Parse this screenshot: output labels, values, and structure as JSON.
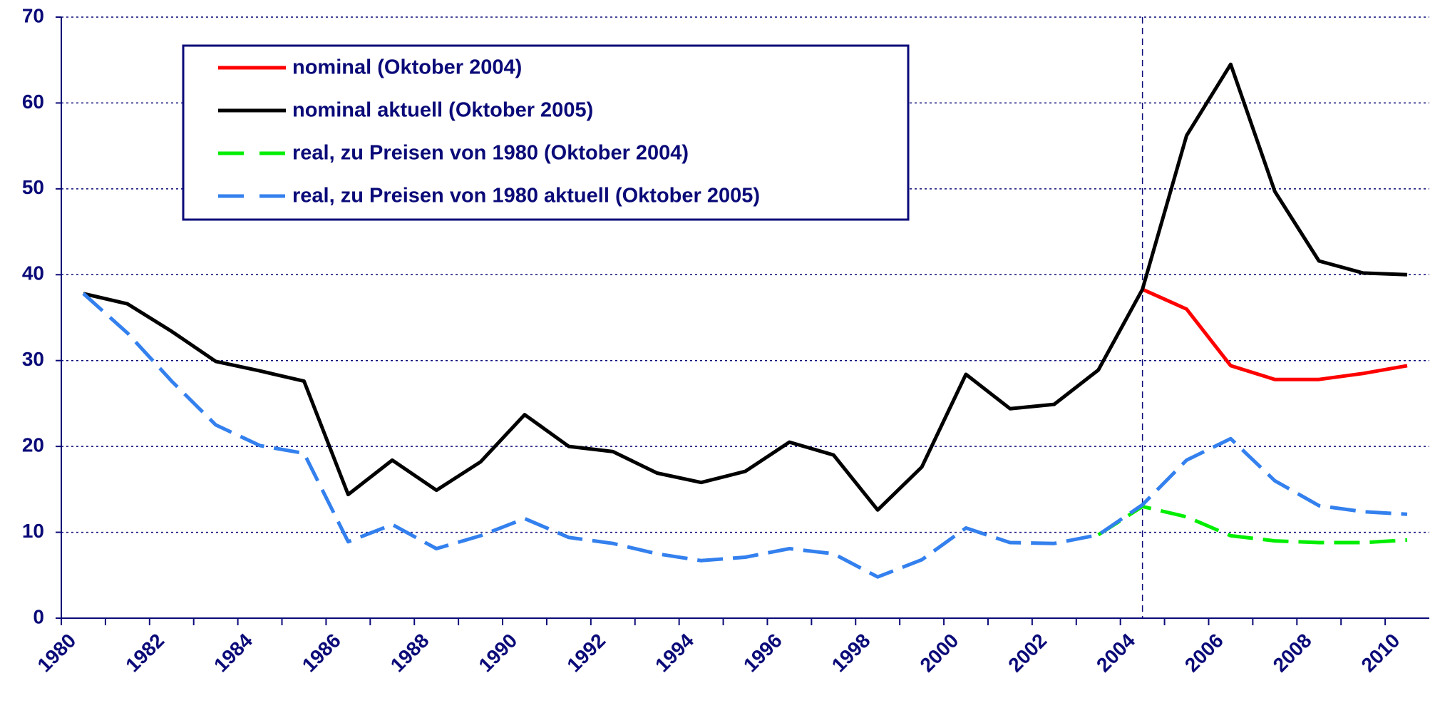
{
  "chart_data": {
    "type": "line",
    "categories": [
      "1980",
      null,
      "1982",
      null,
      "1984",
      null,
      "1986",
      null,
      "1988",
      null,
      "1990",
      null,
      "1992",
      null,
      "1994",
      null,
      "1996",
      null,
      "1998",
      null,
      "2000",
      null,
      "2002",
      null,
      "2004",
      null,
      "2006",
      null,
      "2008",
      null,
      "2010"
    ],
    "series": [
      {
        "name": "nominal (Oktober 2004)",
        "color": "#ff0000",
        "dashed": false,
        "values": [
          null,
          null,
          null,
          null,
          null,
          null,
          null,
          null,
          null,
          null,
          null,
          null,
          null,
          null,
          null,
          null,
          null,
          null,
          null,
          null,
          null,
          null,
          null,
          null,
          38.3,
          36.0,
          29.4,
          27.8,
          27.8,
          28.5,
          29.4
        ]
      },
      {
        "name": "nominal aktuell (Oktober 2005)",
        "color": "#000000",
        "dashed": false,
        "values": [
          37.8,
          36.6,
          33.4,
          29.9,
          28.8,
          27.6,
          14.4,
          18.4,
          14.9,
          18.2,
          23.7,
          20.0,
          19.4,
          16.9,
          15.8,
          17.1,
          20.5,
          19.0,
          12.6,
          17.6,
          28.4,
          24.4,
          24.9,
          28.9,
          38.3,
          56.2,
          64.5,
          49.7,
          41.6,
          40.2,
          40.0
        ]
      },
      {
        "name": "real, zu Preisen von 1980 (Oktober 2004)",
        "color": "#00ee00",
        "dashed": true,
        "values": [
          null,
          null,
          null,
          null,
          null,
          null,
          null,
          null,
          null,
          null,
          null,
          null,
          null,
          null,
          null,
          null,
          null,
          null,
          null,
          null,
          null,
          null,
          null,
          9.7,
          13.0,
          11.8,
          9.6,
          9.0,
          8.8,
          8.8,
          9.1
        ]
      },
      {
        "name": "real, zu Preisen von 1980 aktuell (Oktober 2005)",
        "color": "#3380ee",
        "dashed": true,
        "values": [
          37.8,
          33.2,
          27.6,
          22.5,
          20.1,
          19.2,
          8.9,
          10.9,
          8.1,
          9.6,
          11.6,
          9.4,
          8.7,
          7.5,
          6.7,
          7.1,
          8.1,
          7.5,
          4.8,
          6.8,
          10.5,
          8.8,
          8.7,
          9.7,
          13.2,
          18.4,
          20.9,
          16.0,
          13.1,
          12.4,
          12.1
        ]
      }
    ],
    "ylim": [
      0,
      70
    ],
    "yticks": [
      0,
      10,
      20,
      30,
      40,
      50,
      60,
      70
    ],
    "grid": true,
    "vline": "2004",
    "legend": "top-left"
  }
}
